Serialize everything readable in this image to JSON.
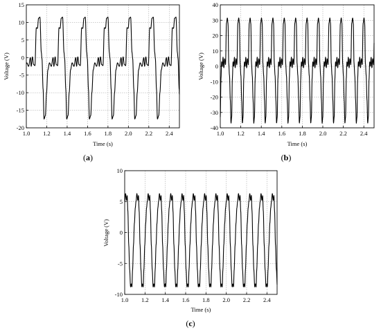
{
  "chart_data": [
    {
      "id": "a",
      "type": "line",
      "panel_label": "a",
      "xlabel": "Time (s)",
      "ylabel": "Voltage (V)",
      "xlim": [
        1.0,
        2.5
      ],
      "ylim": [
        -20,
        15
      ],
      "xticks": [
        1.0,
        1.2,
        1.4,
        1.6,
        1.8,
        2.0,
        2.2,
        2.4
      ],
      "yticks": [
        -20,
        -15,
        -10,
        -5,
        0,
        5,
        10,
        15
      ],
      "grid": true,
      "waveform": {
        "fundamental_period_s": 0.2222,
        "phase_s": 1.04,
        "cycle_shape": {
          "t_fraction": [
            0,
            0.035,
            0.09,
            0.14,
            0.2,
            0.26,
            0.31,
            0.36,
            0.42,
            0.48,
            0.51,
            0.56,
            0.6,
            0.66,
            0.71,
            0.77,
            0.84,
            0.92,
            1.0
          ],
          "v": [
            0,
            -2.5,
            0.2,
            -2,
            -2.3,
            8.5,
            8.3,
            11.2,
            11.5,
            1.5,
            -0.3,
            -9,
            -17.5,
            -16.5,
            -10,
            -3.5,
            -1.5,
            -2.5,
            0
          ]
        }
      }
    },
    {
      "id": "b",
      "type": "line",
      "panel_label": "b",
      "xlabel": "Time (s)",
      "ylabel": "Voltage (V)",
      "xlim": [
        1.0,
        2.5
      ],
      "ylim": [
        -40,
        40
      ],
      "xticks": [
        1.0,
        1.2,
        1.4,
        1.6,
        1.8,
        2.0,
        2.2,
        2.4
      ],
      "yticks": [
        -40,
        -30,
        -20,
        -10,
        0,
        10,
        20,
        30,
        40
      ],
      "grid": true,
      "waveform": {
        "fundamental_period_s": 0.1111,
        "phase_s": 1.02,
        "cycle_shape": {
          "t_fraction": [
            0,
            0.06,
            0.13,
            0.2,
            0.28,
            0.36,
            0.44,
            0.5,
            0.56,
            0.63,
            0.7,
            0.76,
            0.82,
            0.88,
            0.94,
            1.0
          ],
          "v": [
            0,
            6,
            -1,
            5,
            1,
            28,
            31.5,
            28,
            2,
            -6,
            -22,
            -37,
            -33,
            -8,
            3,
            0
          ]
        }
      }
    },
    {
      "id": "c",
      "type": "line",
      "panel_label": "c",
      "xlabel": "Time (s)",
      "ylabel": "Voltage (V)",
      "xlim": [
        1.0,
        2.5
      ],
      "ylim": [
        -10,
        10
      ],
      "xticks": [
        1.0,
        1.2,
        1.4,
        1.6,
        1.8,
        2.0,
        2.2,
        2.4
      ],
      "yticks": [
        -10,
        -5,
        0,
        5,
        10
      ],
      "grid": true,
      "waveform": {
        "fundamental_period_s": 0.1111,
        "phase_s": 1.0,
        "cycle_shape": {
          "t_fraction": [
            0,
            0.08,
            0.16,
            0.22,
            0.28,
            0.36,
            0.44,
            0.52,
            0.58,
            0.64,
            0.7,
            0.78,
            0.86,
            0.94,
            1.0
          ],
          "v": [
            5.0,
            6.3,
            5.2,
            6.0,
            3.5,
            -2,
            -6,
            -8.8,
            -8.3,
            -8.8,
            -6,
            -2,
            1.5,
            4.0,
            5.0
          ]
        }
      }
    }
  ]
}
